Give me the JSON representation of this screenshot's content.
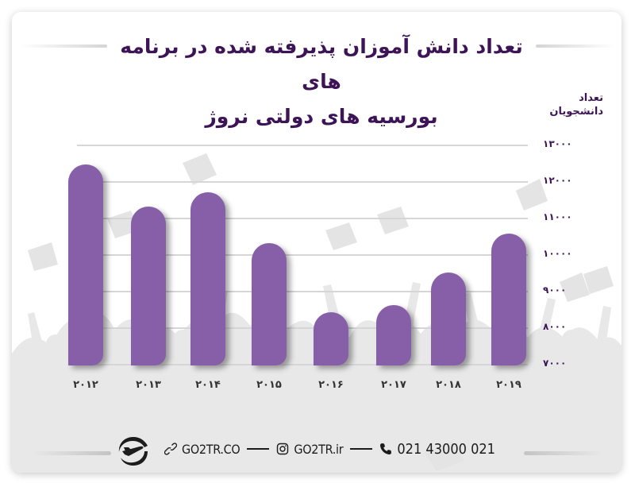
{
  "title": {
    "line1": "تعداد دانش آموزان پذیرفته شده در برنامه های",
    "line2": "بورسیه های دولتی نروژ"
  },
  "y_axis_title": {
    "line1": "تعداد",
    "line2": "دانشجویان"
  },
  "colors": {
    "bar": "#865fa8",
    "title": "#3d1557",
    "gridline": "#d6d6d6",
    "background_silhouette": "#e6e6e6"
  },
  "y_ticks": [
    "۱۳۰۰۰",
    "۱۲۰۰۰",
    "۱۱۰۰۰",
    "۱۰۰۰۰",
    "۹۰۰۰",
    "۸۰۰۰",
    "۷۰۰۰"
  ],
  "x_ticks": [
    "۲۰۱۲",
    "۲۰۱۳",
    "۲۰۱۴",
    "۲۰۱۵",
    "۲۰۱۶",
    "۲۰۱۷",
    "۲۰۱۸",
    "۲۰۱۹"
  ],
  "chart_data": {
    "type": "bar",
    "title": "تعداد دانش آموزان پذیرفته شده در برنامه های بورسیه های دولتی نروژ",
    "xlabel": "",
    "ylabel": "تعداد دانشجویان",
    "categories": [
      "2012",
      "2013",
      "2014",
      "2015",
      "2016",
      "2017",
      "2018",
      "2019"
    ],
    "values": [
      12500,
      11350,
      11750,
      10350,
      8450,
      8650,
      9550,
      10600
    ],
    "ylim": [
      7000,
      13000
    ],
    "yticks": [
      7000,
      8000,
      9000,
      10000,
      11000,
      12000,
      13000
    ],
    "grid": true,
    "legend": null,
    "y_axis_position": "right"
  },
  "footer": {
    "website": "GO2TR.CO",
    "instagram": "GO2TR.ir",
    "phone": "021 43000 021",
    "icons": [
      "logo-plane-icon",
      "link-icon",
      "instagram-icon",
      "phone-icon"
    ]
  }
}
